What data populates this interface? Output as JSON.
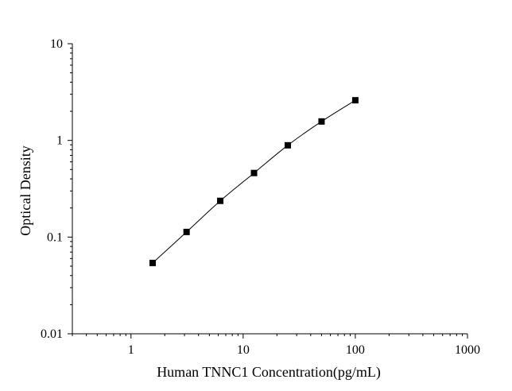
{
  "chart_data": {
    "type": "scatter",
    "xlabel": "Human TNNC1 Concentration(pg/mL)",
    "ylabel": "Optical Density",
    "x_scale": "log",
    "y_scale": "log",
    "xlim": [
      0.3,
      1000
    ],
    "ylim": [
      0.01,
      10
    ],
    "x_ticks": [
      {
        "value": 1,
        "label": "1"
      },
      {
        "value": 10,
        "label": "10"
      },
      {
        "value": 100,
        "label": "100"
      },
      {
        "value": 1000,
        "label": "1000"
      }
    ],
    "y_ticks": [
      {
        "value": 0.01,
        "label": "0.01"
      },
      {
        "value": 0.1,
        "label": "0.1"
      },
      {
        "value": 1,
        "label": "1"
      },
      {
        "value": 10,
        "label": "10"
      }
    ],
    "grid": false,
    "legend": "none",
    "series": [
      {
        "x": [
          1.56,
          3.13,
          6.25,
          12.5,
          25,
          50,
          100
        ],
        "y": [
          0.054,
          0.113,
          0.237,
          0.46,
          0.89,
          1.57,
          2.6
        ],
        "marker": "square",
        "fit_line": true,
        "color": "#000000"
      }
    ]
  }
}
